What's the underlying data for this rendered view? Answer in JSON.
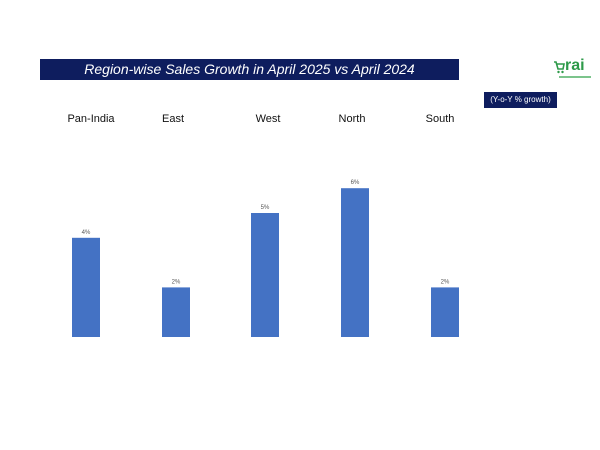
{
  "logo": {
    "text": "rai",
    "color": "#2e9a4a"
  },
  "unit_label": "(Y-o-Y % growth)",
  "chart_data": {
    "type": "bar",
    "title": "Region-wise Sales Growth in April 2025 vs April 2024",
    "categories": [
      "Pan-India",
      "East",
      "West",
      "North",
      "South"
    ],
    "values": [
      4,
      2,
      5,
      6,
      2
    ],
    "data_labels": [
      "4%",
      "2%",
      "5%",
      "6%",
      "2%"
    ],
    "ylabel": "Y-o-Y % growth",
    "ylim": [
      0,
      6
    ],
    "grid": false,
    "bar_color": "#4472c4"
  }
}
